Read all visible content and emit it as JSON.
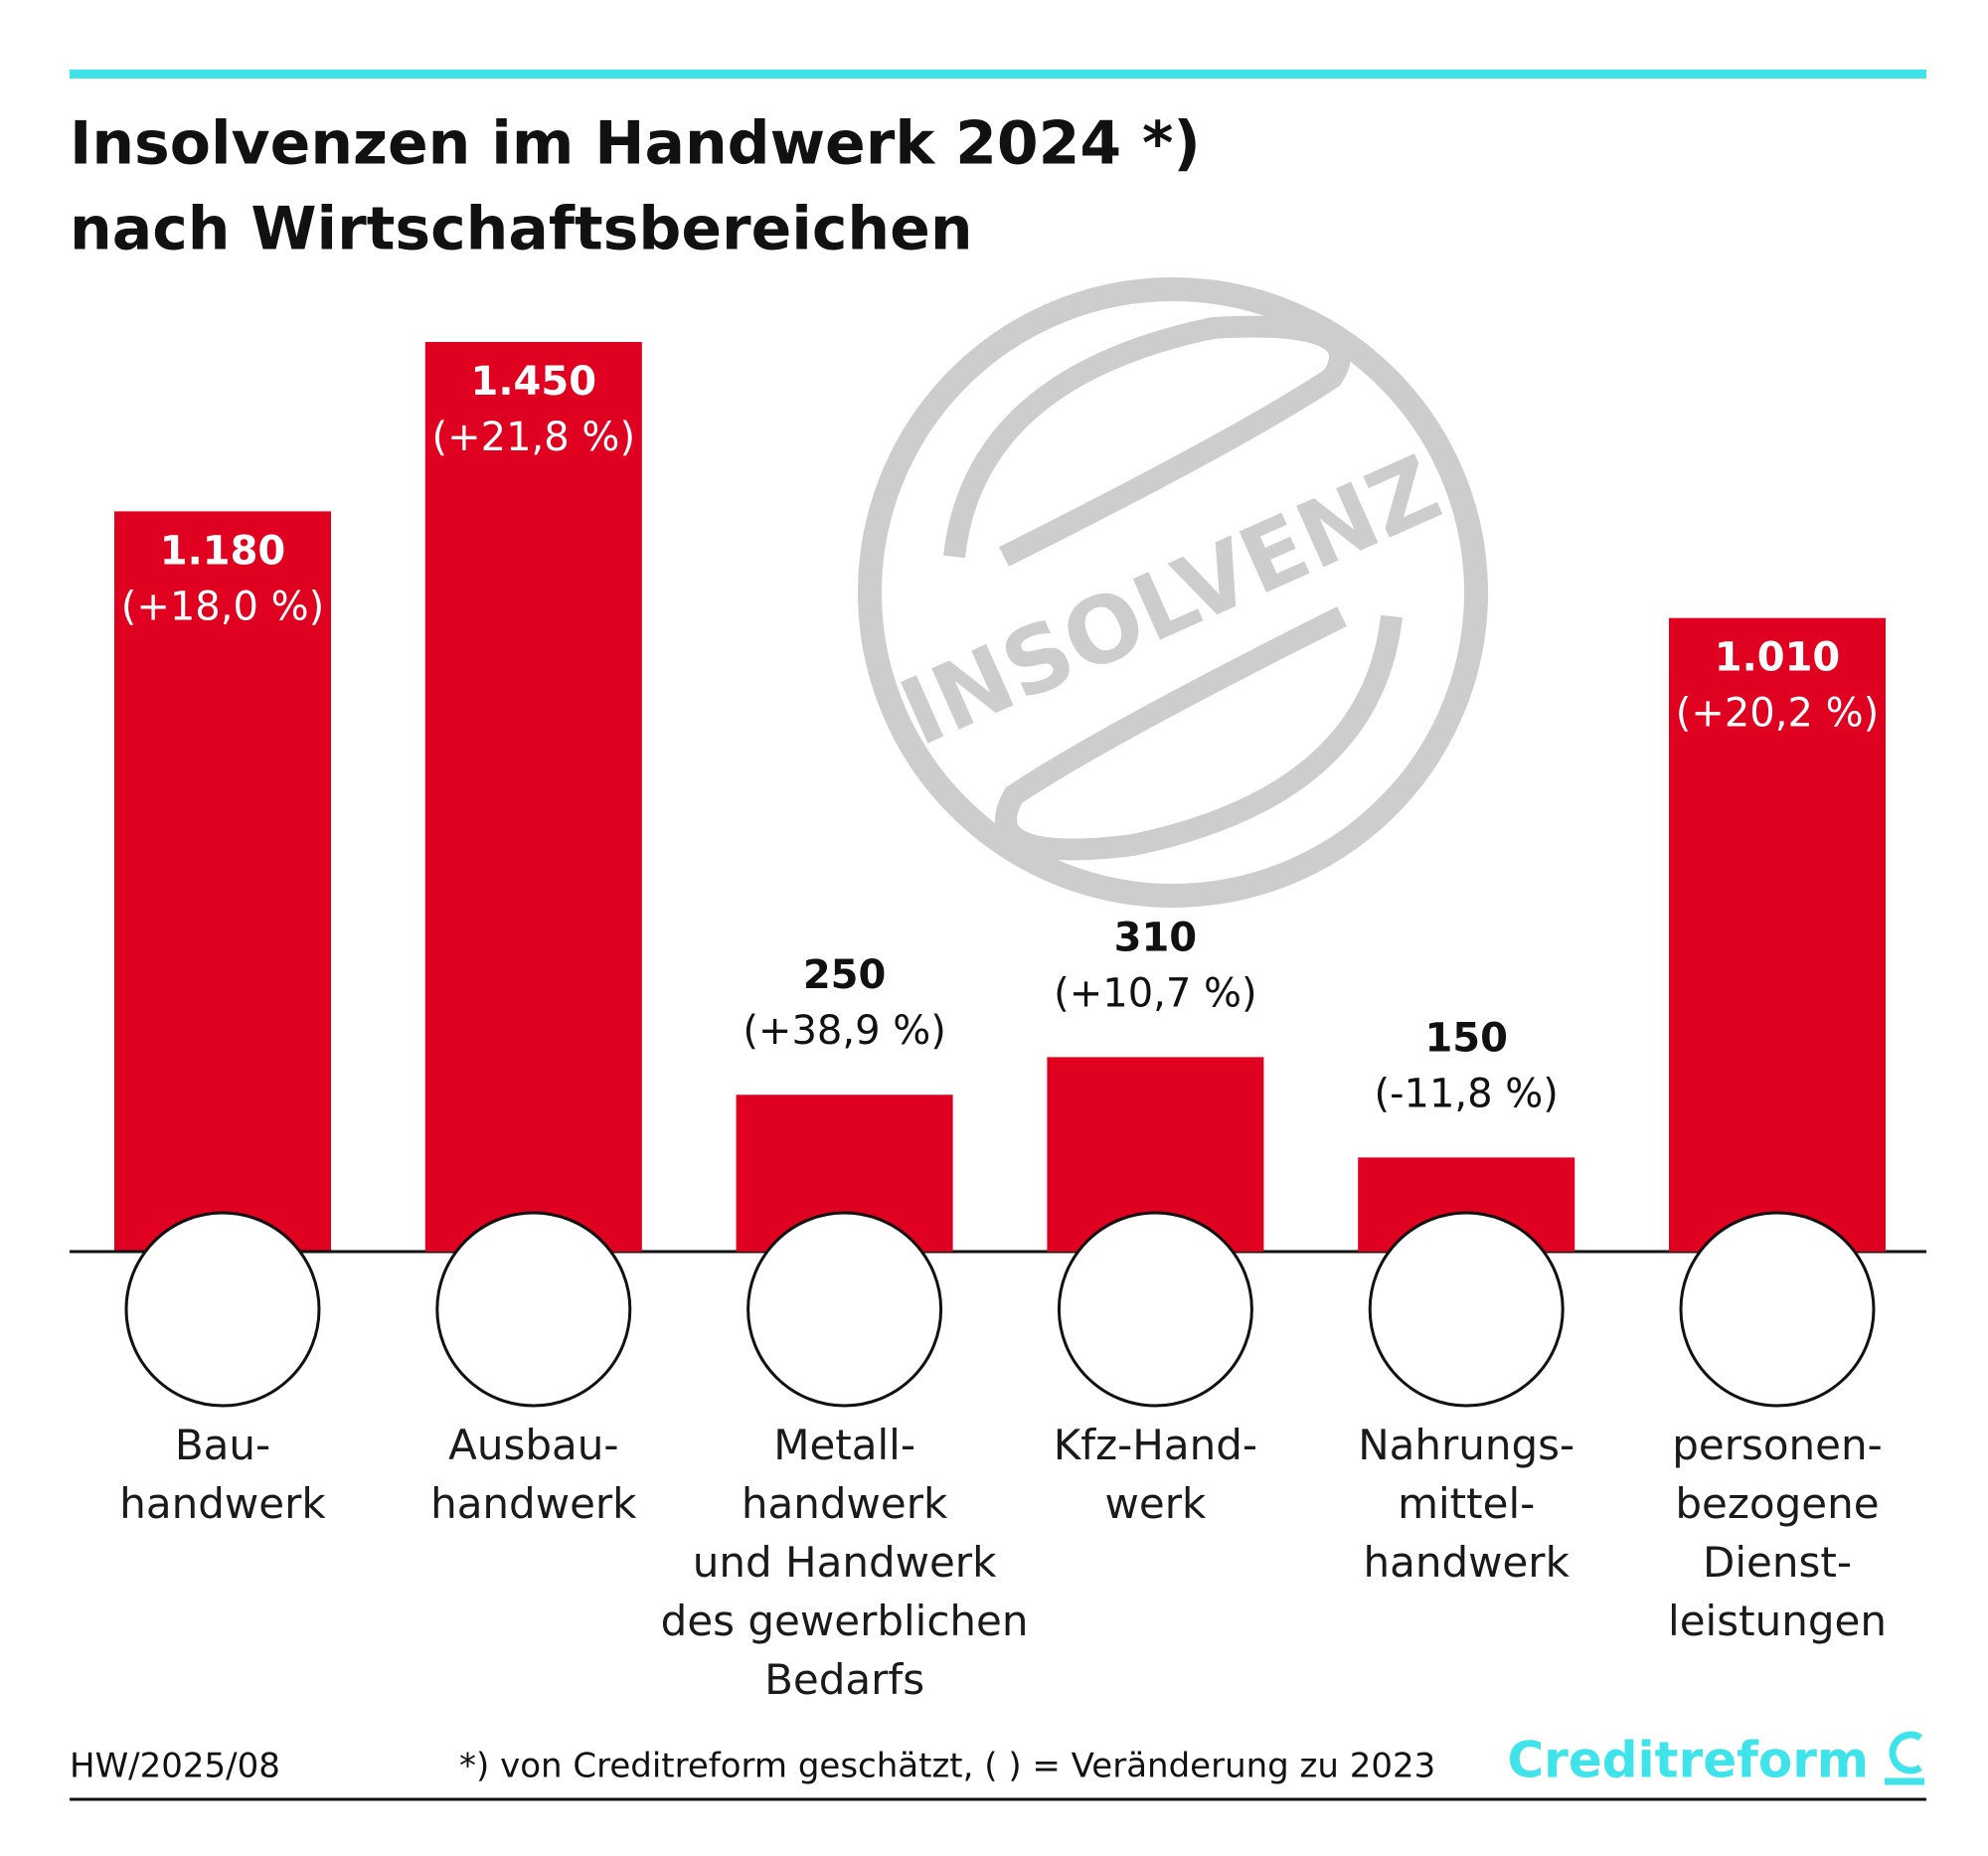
{
  "chart_data": {
    "type": "bar",
    "title": "Insolvenzen im Handwerk 2024 *)",
    "subtitle": "nach Wirtschaftsbereichen",
    "categories": [
      "Bau-\nhandwerk",
      "Ausbau-\nhandwerk",
      "Metall-\nhandwerk\nund Handwerk\ndes gewerblichen\nBedarfs",
      "Kfz-Hand-\nwerk",
      "Nahrungs-\nmittel-\nhandwerk",
      "personen-\nbezogene\nDienst-\nleistungen"
    ],
    "values": [
      1180,
      1450,
      250,
      310,
      150,
      1010
    ],
    "value_labels": [
      "1.180",
      "1.450",
      "250",
      "310",
      "150",
      "1.010"
    ],
    "change_labels": [
      "(+18,0 %)",
      "(+21,8 %)",
      "(+38,9 %)",
      "(+10,7 %)",
      "(-11,8 %)",
      "(+20,2 %)"
    ],
    "color": "#e00020",
    "ylim": [
      0,
      1450
    ],
    "stamp": "INSOLVENZ",
    "source": "HW/2025/08",
    "footnote": "*) von Creditreform geschätzt, ( ) = Veränderung zu 2023",
    "brand": "Creditreform"
  }
}
